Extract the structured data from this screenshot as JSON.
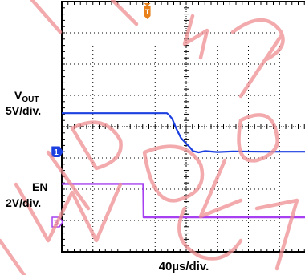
{
  "chart_data": {
    "type": "line",
    "title": "",
    "time_scale_label": "40µs/div.",
    "grid": true,
    "series": [
      {
        "name": "VOUT",
        "label_main": "V",
        "label_sub": "OUT",
        "scale_label": "5V/div.",
        "channel_marker": "1",
        "color": "#1c3fe0",
        "x": [
          0.0,
          3.38,
          3.45,
          3.55,
          3.68,
          3.83,
          3.98,
          4.1,
          4.22,
          4.4,
          4.6,
          5.0,
          5.5,
          6.5,
          7.5,
          8.0
        ],
        "y": [
          4.43,
          4.43,
          4.37,
          4.25,
          3.94,
          3.64,
          3.48,
          3.36,
          3.22,
          3.18,
          3.22,
          3.19,
          3.21,
          3.2,
          3.2,
          3.2
        ]
      },
      {
        "name": "EN",
        "label_main": "EN",
        "scale_label": "2V/div.",
        "channel_marker": "3",
        "color": "#a640f0",
        "x": [
          0.0,
          2.62,
          2.63,
          8.0
        ],
        "y": [
          2.17,
          2.17,
          1.1,
          1.1
        ]
      }
    ],
    "trigger_marker": "T",
    "watermark_text": "RECOMMENDED FOR NEW DESIGNS",
    "colors": {
      "grid": "#000000",
      "border": "#000000",
      "watermark": "#ee8e92",
      "trigger": "#e8801c"
    }
  }
}
